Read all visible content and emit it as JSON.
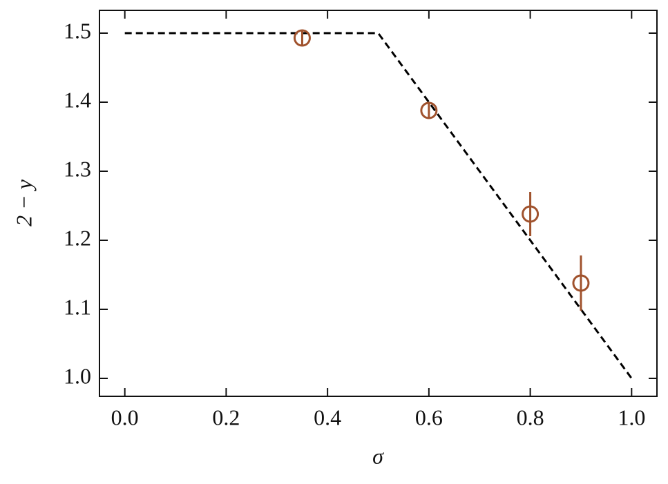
{
  "chart_data": {
    "type": "line",
    "xlabel": "σ",
    "ylabel": "2 − y",
    "xlim": [
      -0.05,
      1.05
    ],
    "ylim": [
      0.974,
      1.533
    ],
    "xticks": [
      {
        "value": 0,
        "label": "0.0"
      },
      0.2,
      0.4,
      0.6,
      0.8,
      {
        "value": 1,
        "label": "1.0"
      }
    ],
    "yticks": [
      {
        "value": 1,
        "label": "1.0"
      },
      1.1,
      1.2,
      1.3,
      1.4,
      1.5
    ],
    "series": [
      {
        "type": "line",
        "color": "#000000",
        "dashed": true,
        "x": [
          0,
          0.5,
          1
        ],
        "values": [
          1.5,
          1.5,
          1.0
        ]
      },
      {
        "type": "errorbar",
        "color": "#a0522d",
        "x": [
          0.35,
          0.6,
          0.8,
          0.9
        ],
        "values": [
          1.493,
          1.388,
          1.238,
          1.138
        ],
        "errors": [
          0.01,
          0.012,
          0.032,
          0.04
        ]
      }
    ]
  }
}
